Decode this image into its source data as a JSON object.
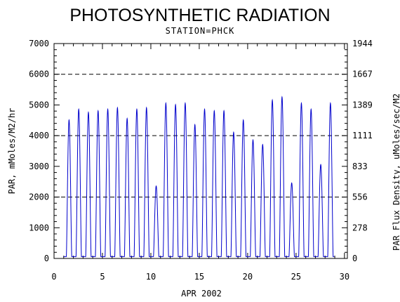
{
  "chart_data": {
    "type": "line",
    "title": "PHOTOSYNTHETIC RADIATION",
    "subtitle": "STATION=PHCK",
    "xlabel": "APR 2002",
    "ylabel": "PAR, mMoles/M2/hr",
    "y2label": "PAR Flux Density, uMoles/sec/M2",
    "xlim": [
      0,
      30.3
    ],
    "ylim": [
      0,
      7000
    ],
    "x_ticks": [
      "0",
      "5",
      "10",
      "15",
      "20",
      "25",
      "30"
    ],
    "y_ticks": [
      "0",
      "1000",
      "2000",
      "3000",
      "4000",
      "5000",
      "6000",
      "7000"
    ],
    "y2_ticks": [
      "0",
      "278",
      "556",
      "833",
      "1111",
      "1389",
      "1667",
      "1944"
    ],
    "grid": "dashed horizontal lines at 2000, 4000, 6000",
    "line_color": "#0000cc",
    "series": [
      {
        "daily_peaks": [
          {
            "day": 1,
            "peak": 4450
          },
          {
            "day": 2,
            "peak": 4800
          },
          {
            "day": 3,
            "peak": 4700
          },
          {
            "day": 4,
            "peak": 4750
          },
          {
            "day": 5,
            "peak": 4800
          },
          {
            "day": 6,
            "peak": 4850
          },
          {
            "day": 7,
            "peak": 4500
          },
          {
            "day": 8,
            "peak": 4800
          },
          {
            "day": 9,
            "peak": 4850
          },
          {
            "day": 10,
            "peak": 2300
          },
          {
            "day": 11,
            "peak": 5000
          },
          {
            "day": 12,
            "peak": 4950
          },
          {
            "day": 13,
            "peak": 5000
          },
          {
            "day": 14,
            "peak": 4300
          },
          {
            "day": 15,
            "peak": 4800
          },
          {
            "day": 16,
            "peak": 4750
          },
          {
            "day": 17,
            "peak": 4750
          },
          {
            "day": 18,
            "peak": 4050
          },
          {
            "day": 19,
            "peak": 4450
          },
          {
            "day": 20,
            "peak": 3800
          },
          {
            "day": 21,
            "peak": 3650
          },
          {
            "day": 22,
            "peak": 5100
          },
          {
            "day": 23,
            "peak": 5200
          },
          {
            "day": 24,
            "peak": 2400
          },
          {
            "day": 25,
            "peak": 5000
          },
          {
            "day": 26,
            "peak": 4800
          },
          {
            "day": 27,
            "peak": 3000
          },
          {
            "day": 28,
            "peak": 5000
          }
        ]
      }
    ]
  }
}
